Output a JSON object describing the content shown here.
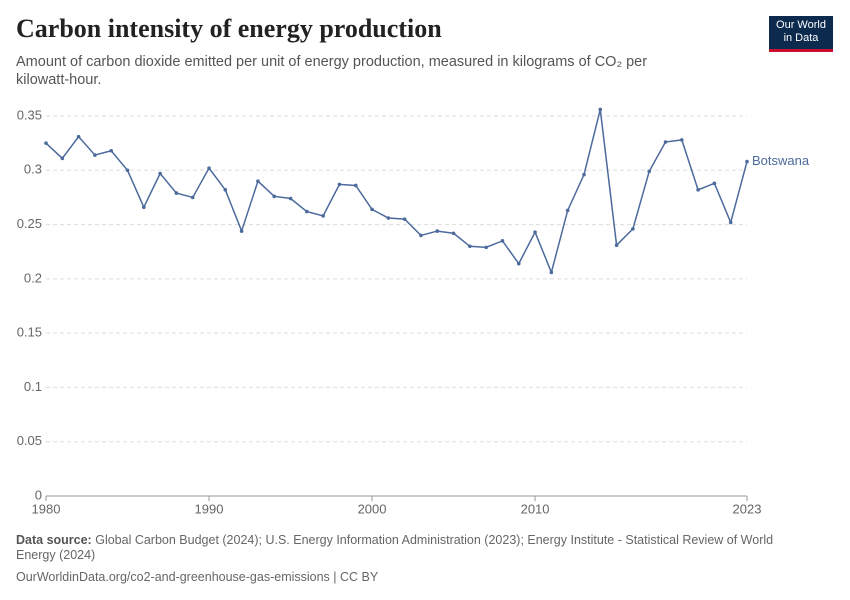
{
  "chart_data": {
    "type": "line",
    "title": "Carbon intensity of energy production",
    "subtitle": "Amount of carbon dioxide emitted per unit of energy production, measured in kilograms of CO₂ per kilowatt-hour.",
    "x": [
      1980,
      1981,
      1982,
      1983,
      1984,
      1985,
      1986,
      1987,
      1988,
      1989,
      1990,
      1991,
      1992,
      1993,
      1994,
      1995,
      1996,
      1997,
      1998,
      1999,
      2000,
      2001,
      2002,
      2003,
      2004,
      2005,
      2006,
      2007,
      2008,
      2009,
      2010,
      2011,
      2012,
      2013,
      2014,
      2015,
      2016,
      2017,
      2018,
      2019,
      2020,
      2021,
      2022,
      2023
    ],
    "series": [
      {
        "name": "Botswana",
        "color": "#4c6a9c",
        "values": [
          0.325,
          0.311,
          0.331,
          0.314,
          0.318,
          0.3,
          0.266,
          0.297,
          0.279,
          0.275,
          0.302,
          0.282,
          0.244,
          0.29,
          0.276,
          0.274,
          0.262,
          0.258,
          0.287,
          0.286,
          0.264,
          0.256,
          0.255,
          0.24,
          0.244,
          0.242,
          0.23,
          0.229,
          0.235,
          0.214,
          0.243,
          0.206,
          0.263,
          0.296,
          0.356,
          0.231,
          0.246,
          0.299,
          0.326,
          0.328,
          0.282,
          0.288,
          0.252,
          0.308
        ]
      }
    ],
    "xlim": [
      1980,
      2023
    ],
    "xticks": [
      1980,
      1990,
      2000,
      2010,
      2023
    ],
    "ylim": [
      0,
      0.35
    ],
    "yticks": [
      0,
      0.05,
      0.1,
      0.15,
      0.2,
      0.25,
      0.3,
      0.35
    ],
    "grid": true,
    "source_label": "Data source:",
    "source": "Global Carbon Budget (2024); U.S. Energy Information Administration (2023); Energy Institute - Statistical Review of World Energy (2024)",
    "footer": "OurWorldinData.org/co2-and-greenhouse-gas-emissions | CC BY",
    "logo": [
      "Our World",
      "in Data"
    ]
  }
}
